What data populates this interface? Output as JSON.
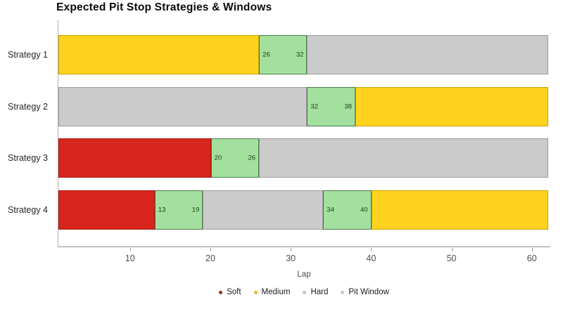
{
  "title": "Expected Pit Stop Strategies & Windows",
  "chart_data": {
    "type": "bar",
    "orientation": "horizontal-stacked",
    "title": "Expected Pit Stop Strategies & Windows",
    "xlabel": "Lap",
    "xlim": [
      1,
      62
    ],
    "xticks": [
      10,
      20,
      30,
      40,
      50,
      60
    ],
    "grid": false,
    "legend_position": "bottom-center",
    "colors": {
      "soft": {
        "fill": "#d7251d",
        "border": "#aa1a12"
      },
      "medium": {
        "fill": "#ffd21e",
        "border": "#c7a300"
      },
      "hard": {
        "fill": "#cbcbcb",
        "border": "#9b9b9b"
      },
      "pit": {
        "fill": "#a3e09d",
        "border": "#4a7a4e"
      }
    },
    "pit_label_color": "#1b3a1b",
    "rows": [
      {
        "label": "Strategy 1",
        "segments": [
          {
            "kind": "medium",
            "start": 1,
            "end": 26
          },
          {
            "kind": "pit",
            "start": 26,
            "end": 32,
            "labels": [
              "26",
              "32"
            ]
          },
          {
            "kind": "hard",
            "start": 32,
            "end": 62
          }
        ]
      },
      {
        "label": "Strategy 2",
        "segments": [
          {
            "kind": "hard",
            "start": 1,
            "end": 32
          },
          {
            "kind": "pit",
            "start": 32,
            "end": 38,
            "labels": [
              "32",
              "38"
            ]
          },
          {
            "kind": "medium",
            "start": 38,
            "end": 62
          }
        ]
      },
      {
        "label": "Strategy 3",
        "segments": [
          {
            "kind": "soft",
            "start": 1,
            "end": 20
          },
          {
            "kind": "pit",
            "start": 20,
            "end": 26,
            "labels": [
              "20",
              "26"
            ]
          },
          {
            "kind": "hard",
            "start": 26,
            "end": 62
          }
        ]
      },
      {
        "label": "Strategy 4",
        "segments": [
          {
            "kind": "soft",
            "start": 1,
            "end": 13
          },
          {
            "kind": "pit",
            "start": 13,
            "end": 19,
            "labels": [
              "13",
              "19"
            ]
          },
          {
            "kind": "hard",
            "start": 19,
            "end": 34
          },
          {
            "kind": "pit",
            "start": 34,
            "end": 40,
            "labels": [
              "34",
              "40"
            ]
          },
          {
            "kind": "medium",
            "start": 40,
            "end": 62
          }
        ]
      }
    ],
    "legend": [
      {
        "label": "Soft",
        "color": "#9e2b28"
      },
      {
        "label": "Medium",
        "color": "#e0ba2e"
      },
      {
        "label": "Hard",
        "color": "#c3c3c3"
      },
      {
        "label": "Pit Window",
        "color": "#bccdb6"
      }
    ]
  }
}
